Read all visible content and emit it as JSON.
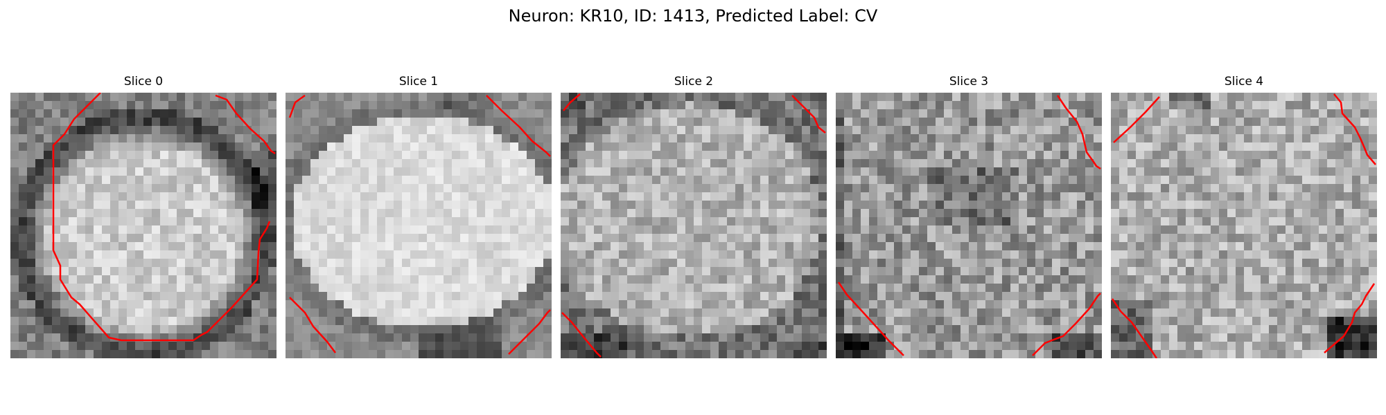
{
  "figure": {
    "title": "Neuron: KR10, ID: 1413, Predicted Label: CV"
  },
  "panels": [
    {
      "title": "Slice 0"
    },
    {
      "title": "Slice 1"
    },
    {
      "title": "Slice 2"
    },
    {
      "title": "Slice 3"
    },
    {
      "title": "Slice 4"
    }
  ],
  "colors": {
    "contour": "#ff0000",
    "background": "#ffffff",
    "colormap": "grayscale"
  }
}
